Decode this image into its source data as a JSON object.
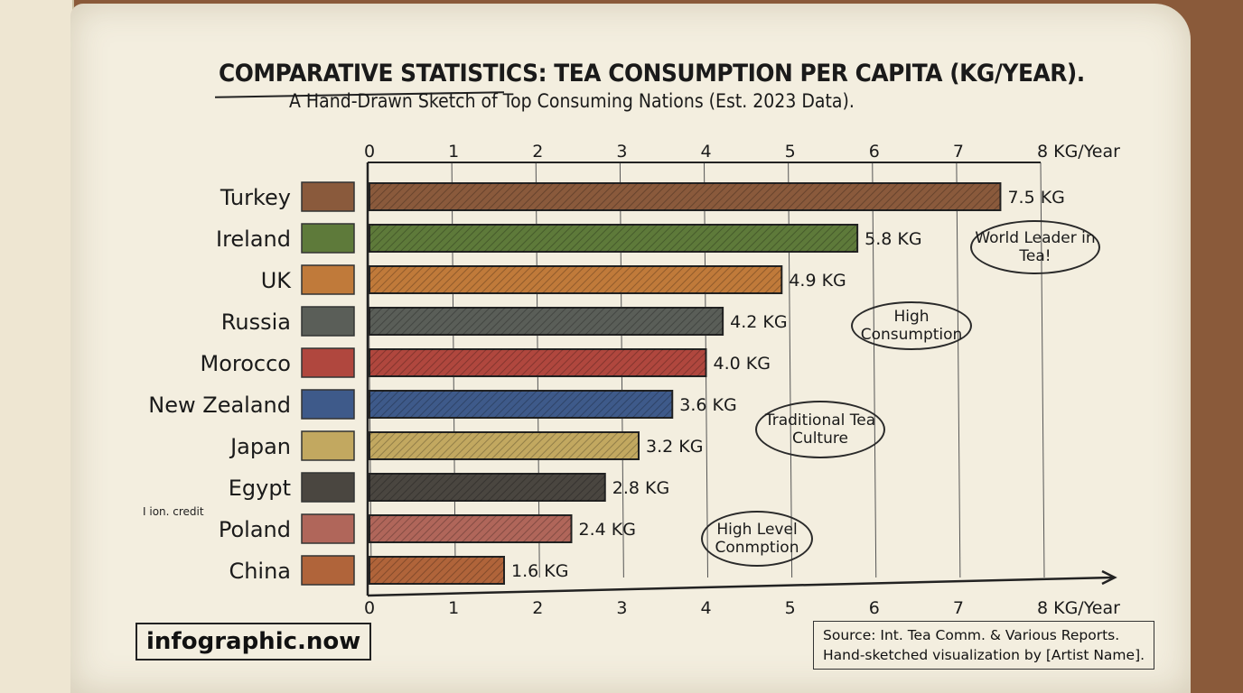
{
  "title": "COMPARATIVE STATISTICS: TEA CONSUMPTION PER CAPITA (KG/YEAR).",
  "subtitle": "A Hand-Drawn Sketch of Top Consuming Nations (Est. 2023 Data).",
  "chart_data": {
    "type": "bar",
    "orientation": "horizontal",
    "categories": [
      "Turkey",
      "Ireland",
      "UK",
      "Russia",
      "Morocco",
      "New Zealand",
      "Japan",
      "Egypt",
      "Poland",
      "China"
    ],
    "values": [
      7.5,
      5.8,
      4.9,
      4.2,
      4.0,
      3.6,
      3.2,
      2.8,
      2.4,
      1.6
    ],
    "value_labels": [
      "7.5 KG",
      "5.8 KG",
      "4.9 KG",
      "4.2 KG",
      "4.0 KG",
      "3.6 KG",
      "3.2 KG",
      "2.8 KG",
      "2.4 KG",
      "1.6 KG"
    ],
    "xlim": [
      0,
      8
    ],
    "x_ticks": [
      "0",
      "1",
      "2",
      "3",
      "4",
      "5",
      "6",
      "7",
      "8"
    ],
    "x_unit": "KG/Year",
    "grid": true,
    "colors": [
      "#8a5a3c",
      "#5e7a3a",
      "#c07a3a",
      "#5a5e58",
      "#b0473e",
      "#3e5a8a",
      "#c2a860",
      "#4a4640",
      "#b0665a",
      "#b0643a"
    ]
  },
  "annotations": {
    "world_leader": "World Leader in Tea!",
    "high_consumption": "High Consumption",
    "traditional": "Traditional Tea Culture",
    "high_level": "High Level Conmption"
  },
  "credit": "I ion. credit",
  "logo": "infographic.now",
  "source": {
    "line1": "Source: Int. Tea Comm. & Various Reports.",
    "line2": "Hand-sketched visualization by [Artist Name]."
  }
}
